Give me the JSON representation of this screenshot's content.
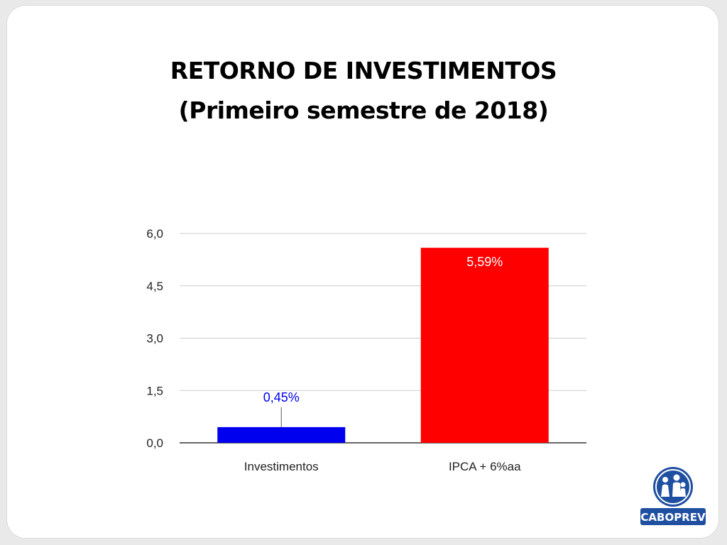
{
  "title_line1": "RETORNO DE INVESTIMENTOS",
  "title_line2": "(Primeiro semestre de 2018)",
  "logo": {
    "text": "CABOPREV",
    "icon": "family-people-icon",
    "color": "#1f4fa1"
  },
  "colors": {
    "investimentos": "#0000ee",
    "ipca": "#ff0000",
    "grid": "#cccccc",
    "axis_text": "#222222"
  },
  "chart_data": {
    "type": "bar",
    "categories": [
      "Investimentos",
      "IPCA + 6%aa"
    ],
    "values": [
      0.45,
      5.59
    ],
    "data_labels": [
      "0,45%",
      "5,59%"
    ],
    "bar_colors": [
      "#0000ee",
      "#ff0000"
    ],
    "yticks": [
      "0,0",
      "1,5",
      "3,0",
      "4,5",
      "6,0"
    ],
    "ytick_values": [
      0,
      1.5,
      3,
      4.5,
      6
    ],
    "ylim": [
      0,
      6
    ],
    "grid": true,
    "legend": "none"
  }
}
